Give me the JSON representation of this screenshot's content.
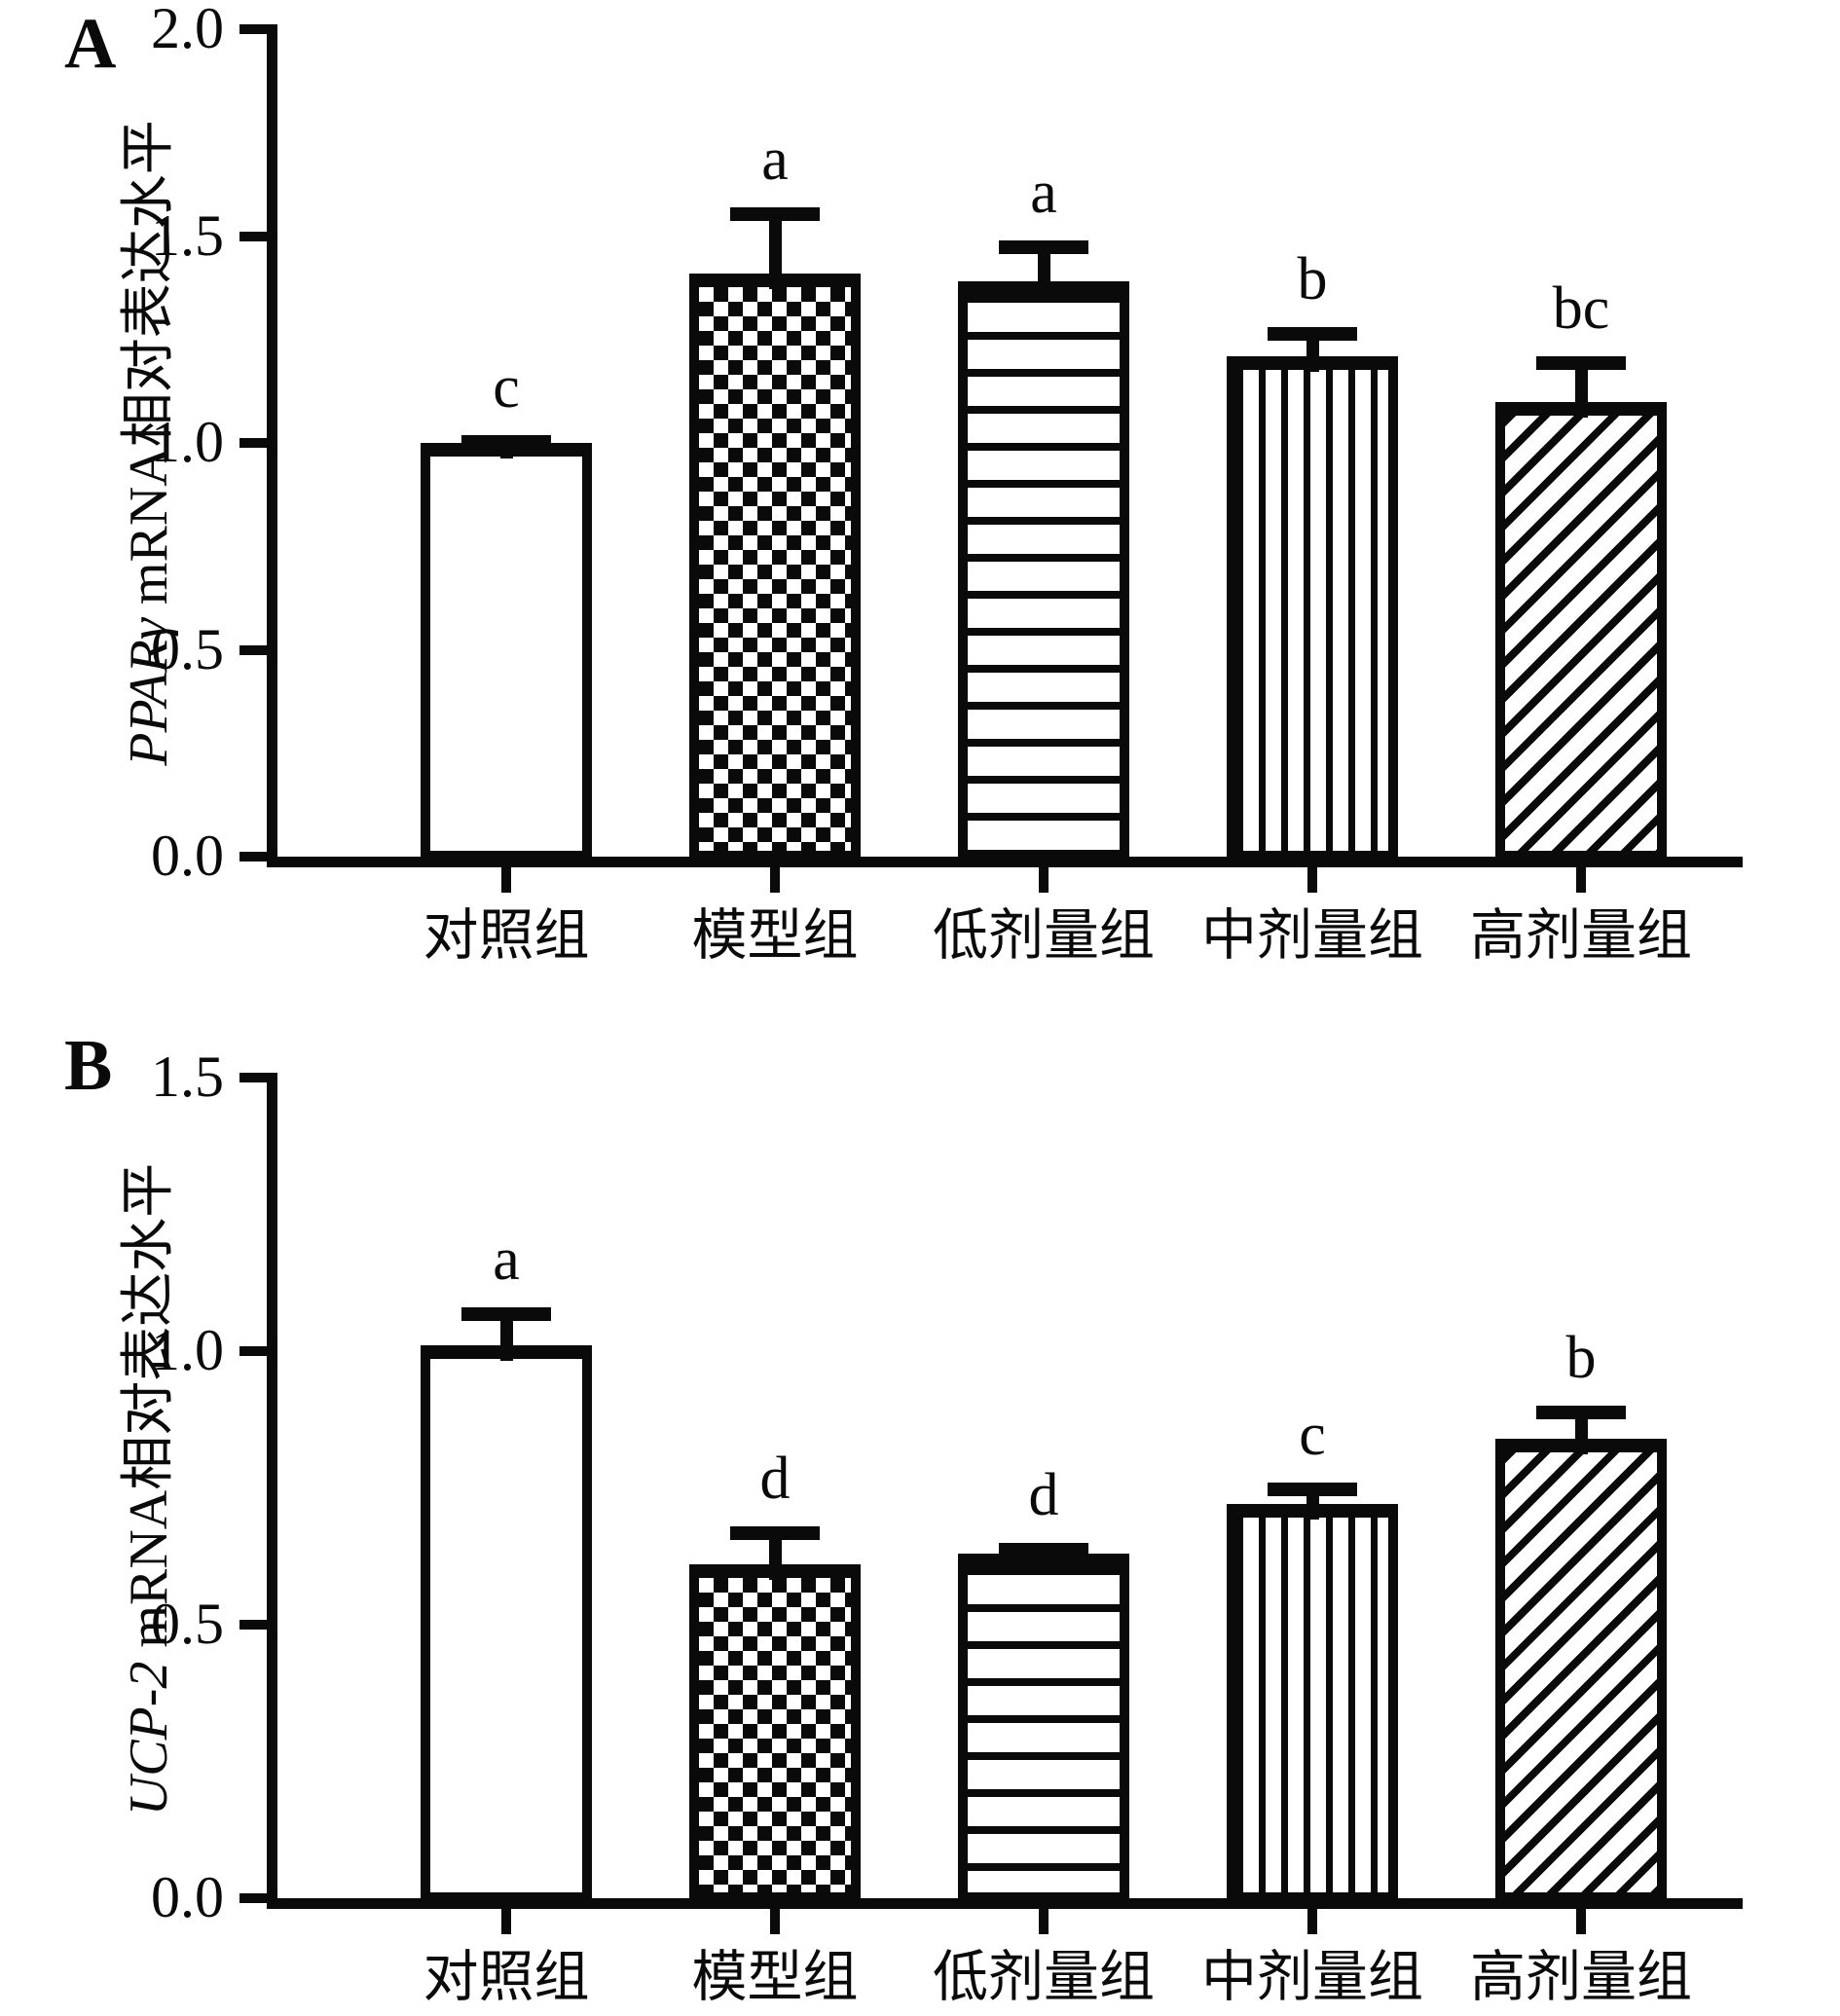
{
  "figure": {
    "background": "#ffffff",
    "ink_color": "#0a0a0a",
    "panel_count": 2
  },
  "chart_data": [
    {
      "type": "bar",
      "panel_label": "A",
      "ylabel_gene": "PPARγ",
      "ylabel_suffix": " mRNA相对表达水平",
      "ylabel_full": "PPARγ mRNA相对表达水平",
      "xlabel": "",
      "categories": [
        "对照组",
        "模型组",
        "低剂量组",
        "中剂量组",
        "高剂量组"
      ],
      "values": [
        1.0,
        1.41,
        1.39,
        1.21,
        1.1
      ],
      "error_upper_tops": [
        1.02,
        1.57,
        1.49,
        1.28,
        1.21
      ],
      "sig_letters": [
        "c",
        "a",
        "a",
        "b",
        "bc"
      ],
      "bar_patterns": [
        "plain",
        "checker",
        "horizontal-lines",
        "vertical-lines",
        "diagonal-lines"
      ],
      "ylim": [
        0,
        2.0
      ],
      "ytick_labels": [
        "2.0",
        "1.5",
        "1.0",
        "0.5",
        "0.0"
      ],
      "grid": false,
      "legend": "none",
      "bar_outline_color": "#0a0a0a",
      "bar_fill_color": "#ffffff"
    },
    {
      "type": "bar",
      "panel_label": "B",
      "ylabel_gene": "UCP-2",
      "ylabel_suffix": " mRNA相对表达水平",
      "ylabel_full": "UCP-2 mRNA相对表达水平",
      "xlabel": "",
      "categories": [
        "对照组",
        "模型组",
        "低剂量组",
        "中剂量组",
        "高剂量组"
      ],
      "values": [
        1.01,
        0.61,
        0.63,
        0.72,
        0.84
      ],
      "error_upper_tops": [
        1.08,
        0.68,
        0.65,
        0.76,
        0.9
      ],
      "sig_letters": [
        "a",
        "d",
        "d",
        "c",
        "b"
      ],
      "bar_patterns": [
        "plain",
        "checker",
        "horizontal-lines",
        "vertical-lines",
        "diagonal-lines"
      ],
      "ylim": [
        0,
        1.5
      ],
      "ytick_labels": [
        "1.5",
        "1.0",
        "0.5",
        "0.0"
      ],
      "grid": false,
      "legend": "none",
      "bar_outline_color": "#0a0a0a",
      "bar_fill_color": "#ffffff"
    }
  ]
}
